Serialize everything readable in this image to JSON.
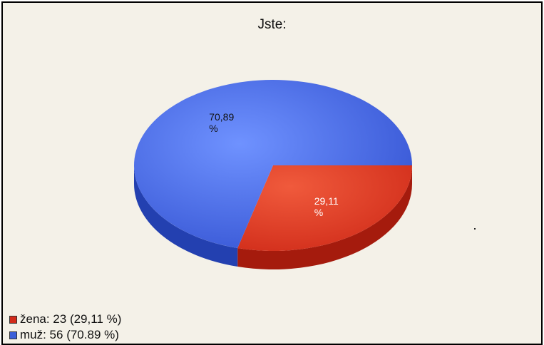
{
  "chart_data": {
    "type": "pie",
    "title": "Jste:",
    "slices": [
      {
        "label": "žena",
        "count": 23,
        "percent": 29.11,
        "percent_text": "29,11",
        "color": "#d22b1b"
      },
      {
        "label": "muž",
        "count": 56,
        "percent": 70.89,
        "percent_text": "70,89",
        "color": "#3a5ed8"
      }
    ],
    "percent_sign": "%",
    "legend": {
      "position": "bottom-left",
      "entries": [
        "žena: 23 (29,11 %)",
        "muž: 56 (70.89 %)"
      ]
    }
  }
}
